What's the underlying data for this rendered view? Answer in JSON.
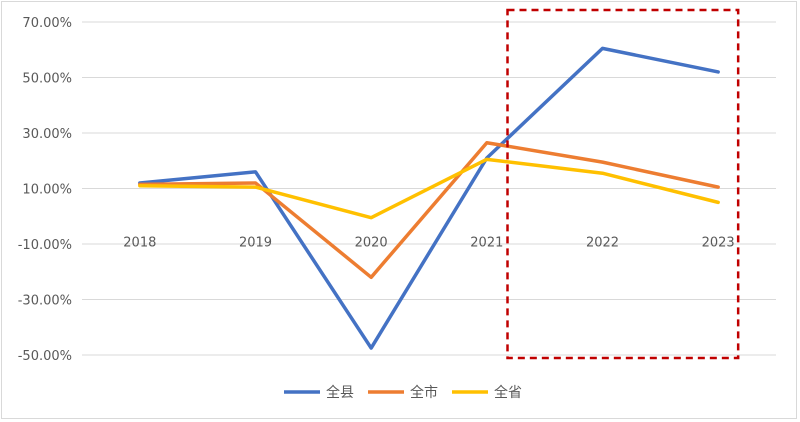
{
  "chart_data": {
    "type": "line",
    "categories": [
      "2018",
      "2019",
      "2020",
      "2021",
      "2022",
      "2023"
    ],
    "yticks": [
      "70.00%",
      "50.00%",
      "30.00%",
      "10.00%",
      "-10.00%",
      "-30.00%",
      "-50.00%"
    ],
    "ylim": [
      -50,
      70
    ],
    "grid": true,
    "legend": "bottom",
    "series": [
      {
        "name": "全县",
        "color": "#4472c4",
        "values": [
          12.0,
          16.0,
          -47.5,
          21.0,
          60.5,
          52.0
        ]
      },
      {
        "name": "全市",
        "color": "#ed7d31",
        "values": [
          11.5,
          12.0,
          -22.0,
          26.5,
          19.5,
          10.5
        ]
      },
      {
        "name": "全省",
        "color": "#ffc000",
        "values": [
          11.0,
          10.5,
          -0.5,
          20.5,
          15.5,
          5.0
        ]
      }
    ],
    "highlight": {
      "from_category": "2022",
      "to_category": "2023",
      "color": "#c00000",
      "style": "dashed"
    }
  }
}
